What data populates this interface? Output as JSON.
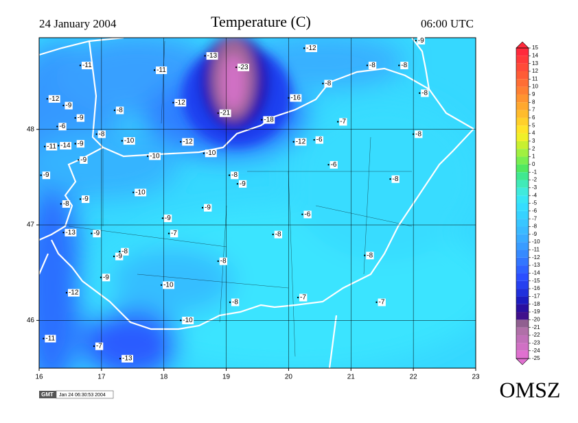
{
  "map": {
    "type": "station-map",
    "title": "Temperature (C)",
    "date": "24 January 2004",
    "time": "06:00 UTC",
    "agency": "OMSZ",
    "stamp_logo": "GMT",
    "stamp_text": "Jan 24 06:30:53 2004",
    "xlim": [
      16,
      23
    ],
    "ylim": [
      45.5,
      48.96
    ],
    "xticks": [
      16,
      17,
      18,
      19,
      20,
      21,
      22,
      23
    ],
    "yticks": [
      46,
      47,
      48
    ],
    "grid": true,
    "stations": [
      {
        "lon": 18.66,
        "lat": 48.77,
        "value": -13
      },
      {
        "lon": 19.16,
        "lat": 48.65,
        "value": -23
      },
      {
        "lon": 20.25,
        "lat": 48.85,
        "value": -12
      },
      {
        "lon": 22.04,
        "lat": 48.93,
        "value": -9
      },
      {
        "lon": 16.66,
        "lat": 48.67,
        "value": -11
      },
      {
        "lon": 17.85,
        "lat": 48.62,
        "value": -11
      },
      {
        "lon": 21.26,
        "lat": 48.67,
        "value": -8
      },
      {
        "lon": 21.77,
        "lat": 48.67,
        "value": -8
      },
      {
        "lon": 20.55,
        "lat": 48.48,
        "value": -8
      },
      {
        "lon": 22.1,
        "lat": 48.38,
        "value": -8
      },
      {
        "lon": 16.13,
        "lat": 48.32,
        "value": -12
      },
      {
        "lon": 16.39,
        "lat": 48.25,
        "value": -9
      },
      {
        "lon": 18.15,
        "lat": 48.28,
        "value": -12
      },
      {
        "lon": 20.0,
        "lat": 48.33,
        "value": -16
      },
      {
        "lon": 17.21,
        "lat": 48.2,
        "value": -8
      },
      {
        "lon": 16.58,
        "lat": 48.12,
        "value": -9
      },
      {
        "lon": 18.87,
        "lat": 48.17,
        "value": -21
      },
      {
        "lon": 19.57,
        "lat": 48.1,
        "value": -18
      },
      {
        "lon": 16.29,
        "lat": 48.03,
        "value": -6
      },
      {
        "lon": 20.79,
        "lat": 48.08,
        "value": -7
      },
      {
        "lon": 16.92,
        "lat": 47.95,
        "value": -8
      },
      {
        "lon": 22.0,
        "lat": 47.95,
        "value": -8
      },
      {
        "lon": 17.33,
        "lat": 47.88,
        "value": -10
      },
      {
        "lon": 16.09,
        "lat": 47.82,
        "value": -11
      },
      {
        "lon": 16.31,
        "lat": 47.83,
        "value": -14
      },
      {
        "lon": 16.58,
        "lat": 47.85,
        "value": -9
      },
      {
        "lon": 18.27,
        "lat": 47.87,
        "value": -12
      },
      {
        "lon": 20.08,
        "lat": 47.87,
        "value": -12
      },
      {
        "lon": 20.41,
        "lat": 47.89,
        "value": -6
      },
      {
        "lon": 16.63,
        "lat": 47.68,
        "value": -9
      },
      {
        "lon": 17.74,
        "lat": 47.72,
        "value": -10
      },
      {
        "lon": 18.64,
        "lat": 47.75,
        "value": -10
      },
      {
        "lon": 20.64,
        "lat": 47.63,
        "value": -6
      },
      {
        "lon": 16.03,
        "lat": 47.52,
        "value": -9
      },
      {
        "lon": 19.05,
        "lat": 47.52,
        "value": -8
      },
      {
        "lon": 19.18,
        "lat": 47.43,
        "value": -9
      },
      {
        "lon": 21.63,
        "lat": 47.48,
        "value": -8
      },
      {
        "lon": 17.51,
        "lat": 47.34,
        "value": -10
      },
      {
        "lon": 16.66,
        "lat": 47.27,
        "value": -9
      },
      {
        "lon": 16.35,
        "lat": 47.22,
        "value": -8
      },
      {
        "lon": 18.62,
        "lat": 47.18,
        "value": -9
      },
      {
        "lon": 20.22,
        "lat": 47.11,
        "value": -6
      },
      {
        "lon": 17.98,
        "lat": 47.07,
        "value": -9
      },
      {
        "lon": 16.39,
        "lat": 46.92,
        "value": -13
      },
      {
        "lon": 16.84,
        "lat": 46.91,
        "value": -9
      },
      {
        "lon": 18.08,
        "lat": 46.91,
        "value": -7
      },
      {
        "lon": 19.75,
        "lat": 46.9,
        "value": -8
      },
      {
        "lon": 17.29,
        "lat": 46.72,
        "value": -8
      },
      {
        "lon": 17.2,
        "lat": 46.67,
        "value": -9
      },
      {
        "lon": 21.22,
        "lat": 46.68,
        "value": -8
      },
      {
        "lon": 18.87,
        "lat": 46.62,
        "value": -8
      },
      {
        "lon": 16.99,
        "lat": 46.45,
        "value": -9
      },
      {
        "lon": 17.96,
        "lat": 46.37,
        "value": -10
      },
      {
        "lon": 16.44,
        "lat": 46.29,
        "value": -12
      },
      {
        "lon": 20.15,
        "lat": 46.24,
        "value": -7
      },
      {
        "lon": 19.06,
        "lat": 46.19,
        "value": -8
      },
      {
        "lon": 21.41,
        "lat": 46.19,
        "value": -7
      },
      {
        "lon": 18.27,
        "lat": 46.0,
        "value": -10
      },
      {
        "lon": 16.07,
        "lat": 45.81,
        "value": -11
      },
      {
        "lon": 16.88,
        "lat": 45.73,
        "value": -7
      },
      {
        "lon": 17.3,
        "lat": 45.6,
        "value": -13
      }
    ],
    "colorbar": {
      "ticks": [
        15,
        14,
        13,
        12,
        11,
        10,
        9,
        8,
        7,
        6,
        5,
        4,
        3,
        2,
        1,
        0,
        -1,
        -2,
        -3,
        -4,
        -5,
        -6,
        -7,
        -8,
        -9,
        -10,
        -11,
        -12,
        -13,
        -14,
        -15,
        -16,
        -17,
        -18,
        -19,
        -20,
        -21,
        -22,
        -23,
        -24,
        -25
      ],
      "colors": [
        "#ff2a3c",
        "#ff3a3a",
        "#ff4a38",
        "#ff5c36",
        "#ff6e34",
        "#ff8032",
        "#ff9430",
        "#ffa82e",
        "#ffbc2c",
        "#ffd02a",
        "#ffe428",
        "#f0f028",
        "#c8f030",
        "#a0f040",
        "#78ee50",
        "#50e860",
        "#40e890",
        "#40eab8",
        "#40eadc",
        "#38e6f4",
        "#34ddff",
        "#36d2ff",
        "#38c6ff",
        "#3abaff",
        "#3aacff",
        "#389cff",
        "#368aff",
        "#3276ff",
        "#2e62ff",
        "#2a4eff",
        "#2640f0",
        "#2030dc",
        "#1c1cc0",
        "#2a10a0",
        "#40108c",
        "#906090",
        "#b070a8",
        "#c070b8",
        "#d070c4",
        "#e070d0"
      ]
    }
  }
}
